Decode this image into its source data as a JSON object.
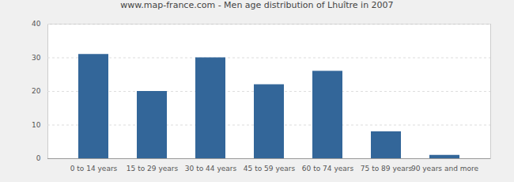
{
  "chart_data": {
    "type": "bar",
    "title": "www.map-france.com - Men age distribution of Lhuître in 2007",
    "categories": [
      "0 to 14 years",
      "15 to 29 years",
      "30 to 44 years",
      "45 to 59 years",
      "60 to 74 years",
      "75 to 89 years",
      "90 years and more"
    ],
    "values": [
      31,
      20,
      30,
      22,
      26,
      8,
      1
    ],
    "color": "#336699",
    "ylim": [
      0,
      40
    ],
    "yticks": [
      0,
      10,
      20,
      30,
      40
    ],
    "grid": true
  }
}
